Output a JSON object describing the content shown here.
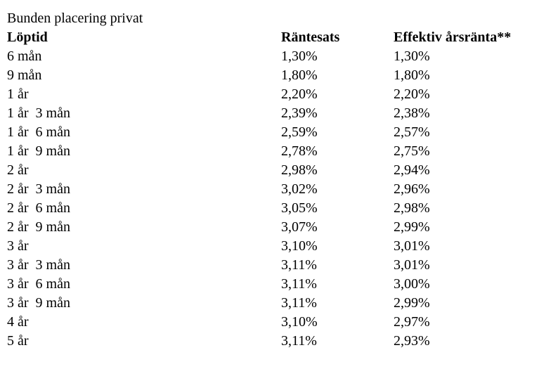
{
  "title": "Bunden placering privat",
  "table": {
    "headers": [
      "Löptid",
      "Räntesats",
      "Effektiv årsränta**"
    ],
    "rows": [
      {
        "term": "6 mån",
        "rate": "1,30%",
        "effective": "1,30%"
      },
      {
        "term": "9 mån",
        "rate": "1,80%",
        "effective": "1,80%"
      },
      {
        "term": "1 år",
        "rate": "2,20%",
        "effective": "2,20%"
      },
      {
        "term": "1 år  3 mån",
        "rate": "2,39%",
        "effective": "2,38%"
      },
      {
        "term": "1 år  6 mån",
        "rate": "2,59%",
        "effective": "2,57%"
      },
      {
        "term": "1 år  9 mån",
        "rate": "2,78%",
        "effective": "2,75%"
      },
      {
        "term": "2 år",
        "rate": "2,98%",
        "effective": "2,94%"
      },
      {
        "term": "2 år  3 mån",
        "rate": "3,02%",
        "effective": "2,96%"
      },
      {
        "term": "2 år  6 mån",
        "rate": "3,05%",
        "effective": "2,98%"
      },
      {
        "term": "2 år  9 mån",
        "rate": "3,07%",
        "effective": "2,99%"
      },
      {
        "term": "3 år",
        "rate": "3,10%",
        "effective": "3,01%"
      },
      {
        "term": "3 år  3 mån",
        "rate": "3,11%",
        "effective": "3,01%"
      },
      {
        "term": "3 år  6 mån",
        "rate": "3,11%",
        "effective": "3,00%"
      },
      {
        "term": "3 år  9 mån",
        "rate": "3,11%",
        "effective": "2,99%"
      },
      {
        "term": "4 år",
        "rate": "3,10%",
        "effective": "2,97%"
      },
      {
        "term": "5 år",
        "rate": "3,11%",
        "effective": "2,93%"
      }
    ]
  },
  "colors": {
    "background": "#ffffff",
    "text": "#000000"
  }
}
